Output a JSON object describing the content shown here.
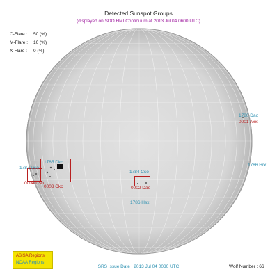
{
  "title": "Detected Sunspot Groups",
  "subtitle": "(displayed on SDO HMI Continuum at 2013 Jul 04 0600 UTC)",
  "flare_probabilities": [
    {
      "label": "C-Flare :",
      "value": "50 (%)"
    },
    {
      "label": "M-Flare :",
      "value": "10 (%)"
    },
    {
      "label": "X-Flare :",
      "value": "0 (%)"
    }
  ],
  "noaa_labels": {
    "r1780": "1780 Dao",
    "r1787": "1787 Dso",
    "r1785": "1785 Dkc",
    "r1784": "1784 Cso",
    "r1786a": "1786 Hsx",
    "r1786b": "1786 Hrx"
  },
  "asisa_labels": {
    "a0001": "0001 Axx",
    "a0004": "0004 Cso",
    "a0003": "0003 Cko",
    "a0002": "0002 Dao"
  },
  "legend": {
    "asisa": "ASISA Regions",
    "noaa": "NOAA Regions"
  },
  "issue_date": "SRS Issue Date : 2013 Jul 04 0030 UTC",
  "wolf_number": "Wolf Number : 66",
  "colors": {
    "noaa": "#2a8fb0",
    "asisa": "#b82020",
    "legend_bg": "#f4e400",
    "subtitle": "#a020a0",
    "disk": "#d9d9d9"
  }
}
